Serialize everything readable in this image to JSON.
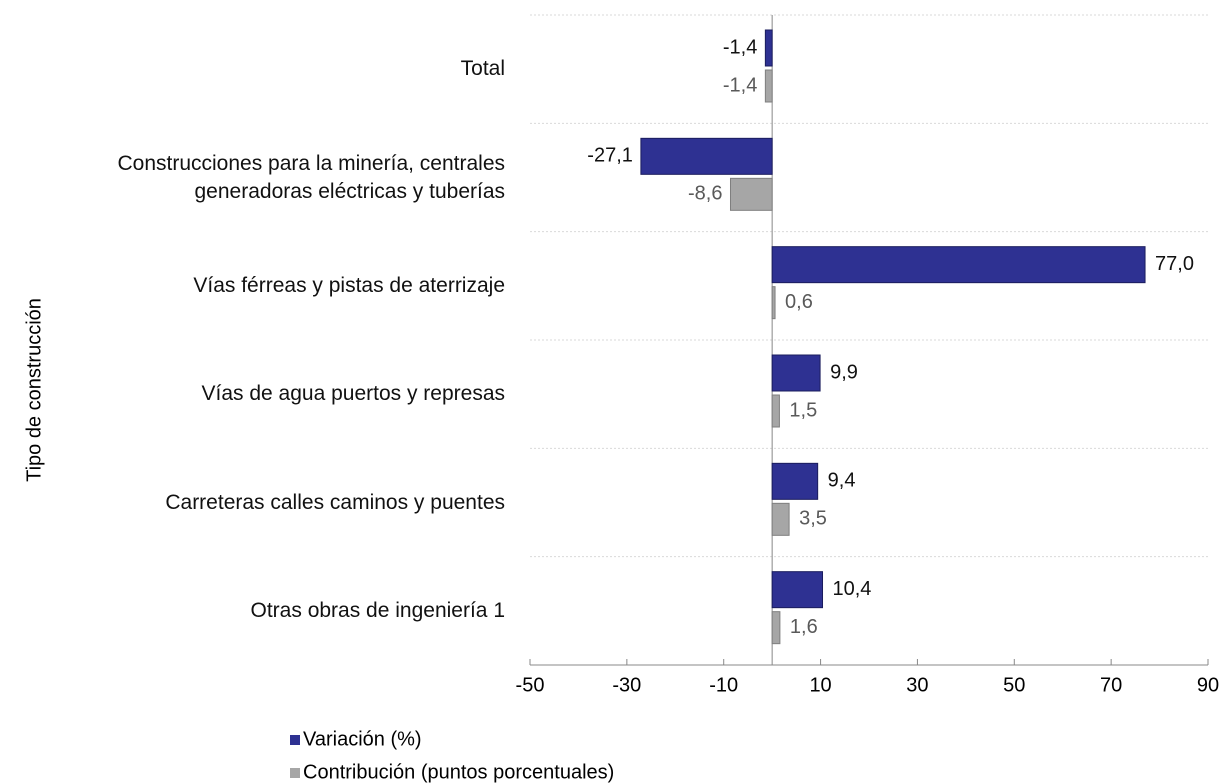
{
  "chart_data": {
    "type": "barh",
    "y_label": "Tipo de construcción",
    "categories": [
      "Total",
      "Construcciones para la minería, centrales generadoras eléctricas y tuberías",
      "Vías férreas y pistas de aterrizaje",
      "Vías de agua puertos y represas",
      "Carreteras calles caminos y puentes",
      "Otras obras de ingeniería 1"
    ],
    "series": [
      {
        "name": "Variación (%)",
        "color": "#2e3192",
        "values": [
          -1.4,
          -27.1,
          77.0,
          9.9,
          9.4,
          10.4
        ],
        "value_labels": [
          "-1,4",
          "-27,1",
          "77,0",
          "9,9",
          "9,4",
          "10,4"
        ]
      },
      {
        "name": "Contribución (puntos porcentuales)",
        "color": "#a6a6a6",
        "values": [
          -1.4,
          -8.6,
          0.6,
          1.5,
          3.5,
          1.6
        ],
        "value_labels": [
          "-1,4",
          "-8,6",
          "0,6",
          "1,5",
          "3,5",
          "1,6"
        ]
      }
    ],
    "xlim": [
      -50,
      90
    ],
    "xticks": [
      -50,
      -30,
      -10,
      10,
      30,
      50,
      70,
      90
    ]
  }
}
